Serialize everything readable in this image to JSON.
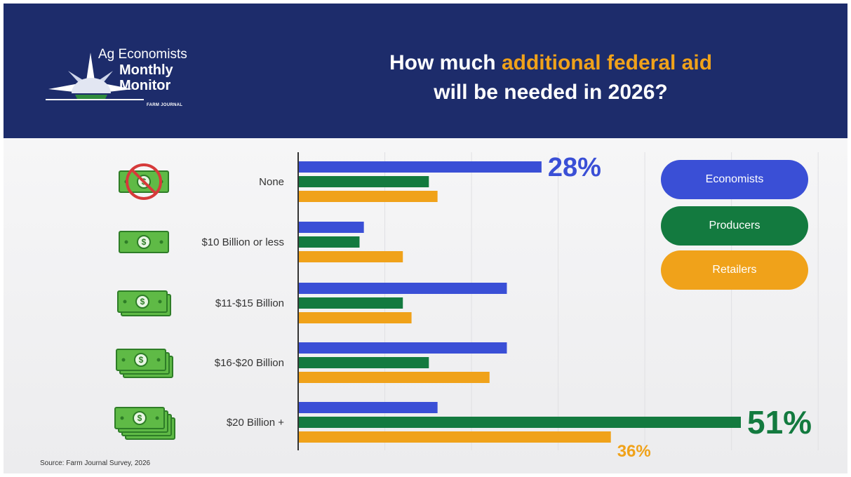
{
  "header": {
    "logo": {
      "line1": "Ag Economists",
      "line2": "Monthly",
      "line3": "Monitor",
      "brand": "FARM JOURNAL"
    },
    "title": {
      "part1": "How much ",
      "highlight": "additional federal aid",
      "part2": "will be needed in 2026?"
    }
  },
  "legend": [
    {
      "label": "Economists",
      "color": "#3a4fd6"
    },
    {
      "label": "Producers",
      "color": "#137a3f"
    },
    {
      "label": "Retailers",
      "color": "#f0a21a"
    }
  ],
  "chart_data": {
    "type": "bar",
    "orientation": "horizontal",
    "categories": [
      "None",
      "$10 Billion or less",
      "$11-$15 Billion",
      "$16-$20 Billion",
      "$20 Billion +"
    ],
    "series": [
      {
        "name": "Economists",
        "color": "#3a4fd6",
        "values": [
          28,
          7.5,
          24,
          24,
          16
        ]
      },
      {
        "name": "Producers",
        "color": "#137a3f",
        "values": [
          15,
          7,
          12,
          15,
          51
        ]
      },
      {
        "name": "Retailers",
        "color": "#f0a21a",
        "values": [
          16,
          12,
          13,
          22,
          36
        ]
      }
    ],
    "data_labels": [
      {
        "series": 0,
        "category": 0,
        "text": "28%"
      },
      {
        "series": 1,
        "category": 4,
        "text": "51%"
      },
      {
        "series": 2,
        "category": 4,
        "text": "36%"
      }
    ],
    "xlim": [
      0,
      60
    ],
    "grid": true,
    "legend": "right"
  },
  "icons": [
    "no-money-icon",
    "one-bill-icon",
    "two-bills-icon",
    "three-bills-icon",
    "four-bills-icon"
  ],
  "source": "Source: Farm Journal Survey, 2026"
}
